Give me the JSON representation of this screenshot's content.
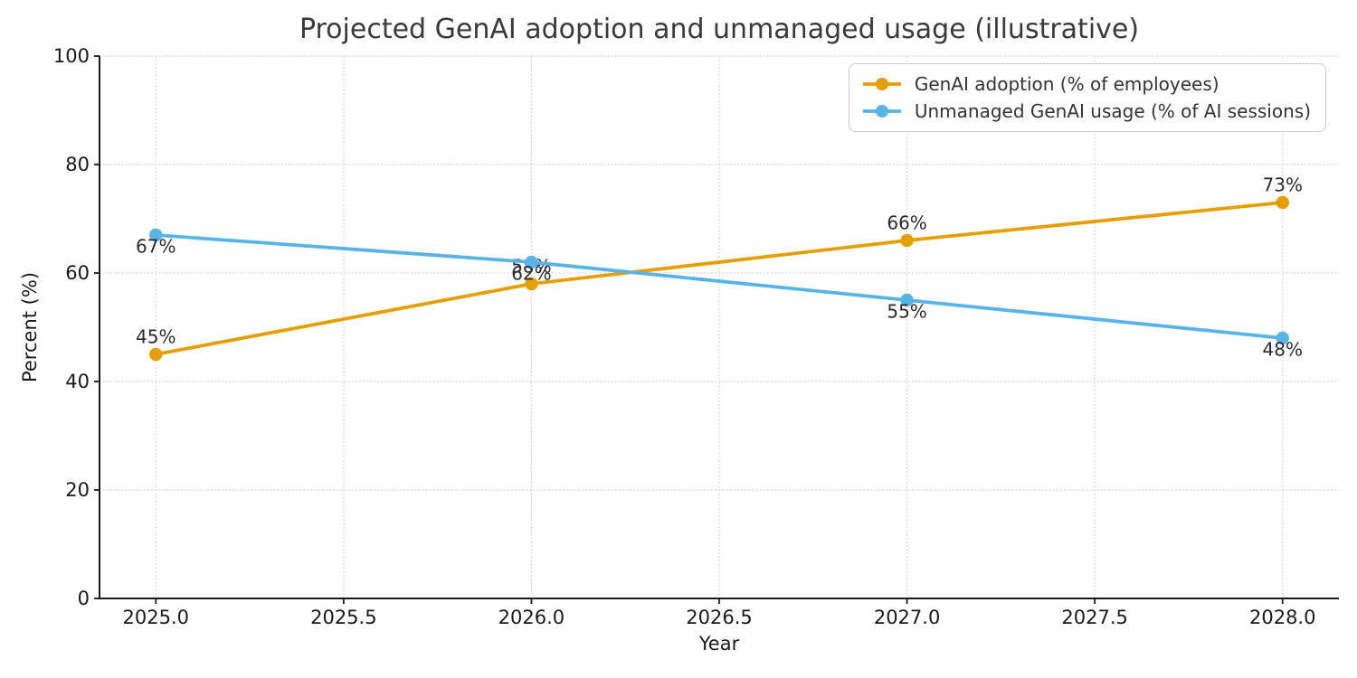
{
  "chart_data": {
    "type": "line",
    "title": "Projected GenAI adoption and unmanaged usage (illustrative)",
    "xlabel": "Year",
    "ylabel": "Percent (%)",
    "x": [
      2025,
      2026,
      2027,
      2028
    ],
    "xlim": [
      2024.85,
      2028.15
    ],
    "ylim": [
      0,
      100
    ],
    "xticks": [
      {
        "v": 2025.0,
        "label": "2025.0"
      },
      {
        "v": 2025.5,
        "label": "2025.5"
      },
      {
        "v": 2026.0,
        "label": "2026.0"
      },
      {
        "v": 2026.5,
        "label": "2026.5"
      },
      {
        "v": 2027.0,
        "label": "2027.0"
      },
      {
        "v": 2027.5,
        "label": "2027.5"
      },
      {
        "v": 2028.0,
        "label": "2028.0"
      }
    ],
    "yticks": [
      {
        "v": 0,
        "label": "0"
      },
      {
        "v": 20,
        "label": "20"
      },
      {
        "v": 40,
        "label": "40"
      },
      {
        "v": 60,
        "label": "60"
      },
      {
        "v": 80,
        "label": "80"
      },
      {
        "v": 100,
        "label": "100"
      }
    ],
    "grid": "dotted, both axes",
    "legend_position": "upper right",
    "series": [
      {
        "id": "genai-adoption",
        "name": "GenAI adoption (% of employees)",
        "color": "#E69F00",
        "values": [
          45,
          58,
          66,
          73
        ],
        "point_labels": [
          "45%",
          "58%",
          "66%",
          "73%"
        ],
        "label_side": "above"
      },
      {
        "id": "unmanaged-usage",
        "name": "Unmanaged GenAI usage (% of AI sessions)",
        "color": "#56B4E9",
        "values": [
          67,
          62,
          55,
          48
        ],
        "point_labels": [
          "67%",
          "62%",
          "55%",
          "48%"
        ],
        "label_side": "below"
      }
    ],
    "colors": {
      "grid": "#cccccc",
      "axis": "#1a1a1a",
      "title_text": "#3a3a3a",
      "annotation_text": "#2b2b2b",
      "legend_border": "#cccccc"
    }
  }
}
